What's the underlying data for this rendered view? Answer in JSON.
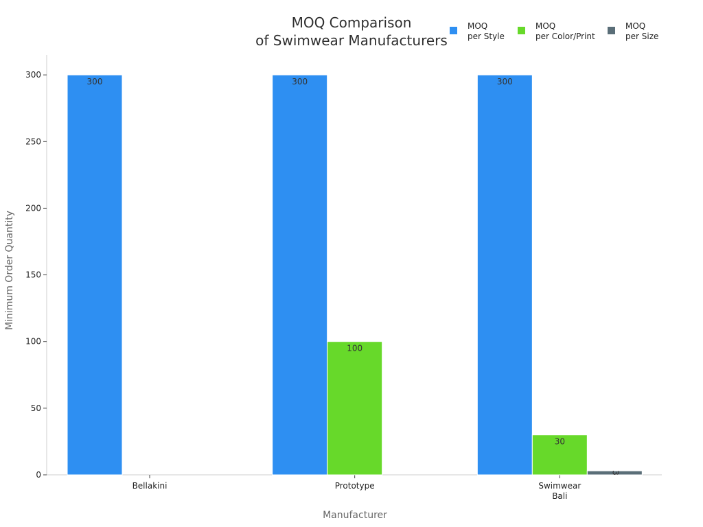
{
  "chart_data": {
    "type": "bar",
    "title_lines": [
      "MOQ Comparison",
      "of Swimwear Manufacturers"
    ],
    "xlabel": "Manufacturer",
    "ylabel": "Minimum Order Quantity",
    "ylim": [
      0,
      315
    ],
    "yticks": [
      0,
      50,
      100,
      150,
      200,
      250,
      300
    ],
    "categories": [
      {
        "lines": [
          "Bellakini"
        ]
      },
      {
        "lines": [
          "Prototype"
        ]
      },
      {
        "lines": [
          "Swimwear",
          "Bali"
        ]
      }
    ],
    "series": [
      {
        "name_lines": [
          "MOQ",
          "per Style"
        ],
        "color": "#2e8ff2",
        "values": [
          300,
          300,
          300
        ],
        "labels": [
          "300",
          "300",
          "300"
        ]
      },
      {
        "name_lines": [
          "MOQ",
          "per Color/Print"
        ],
        "color": "#67d92a",
        "values": [
          null,
          100,
          30
        ],
        "labels": [
          null,
          "100",
          "30"
        ]
      },
      {
        "name_lines": [
          "MOQ",
          "per Size"
        ],
        "color": "#5a6e78",
        "values": [
          null,
          null,
          3
        ],
        "labels": [
          null,
          null,
          "3"
        ]
      }
    ],
    "legend_position": "top-right",
    "grid": false
  }
}
